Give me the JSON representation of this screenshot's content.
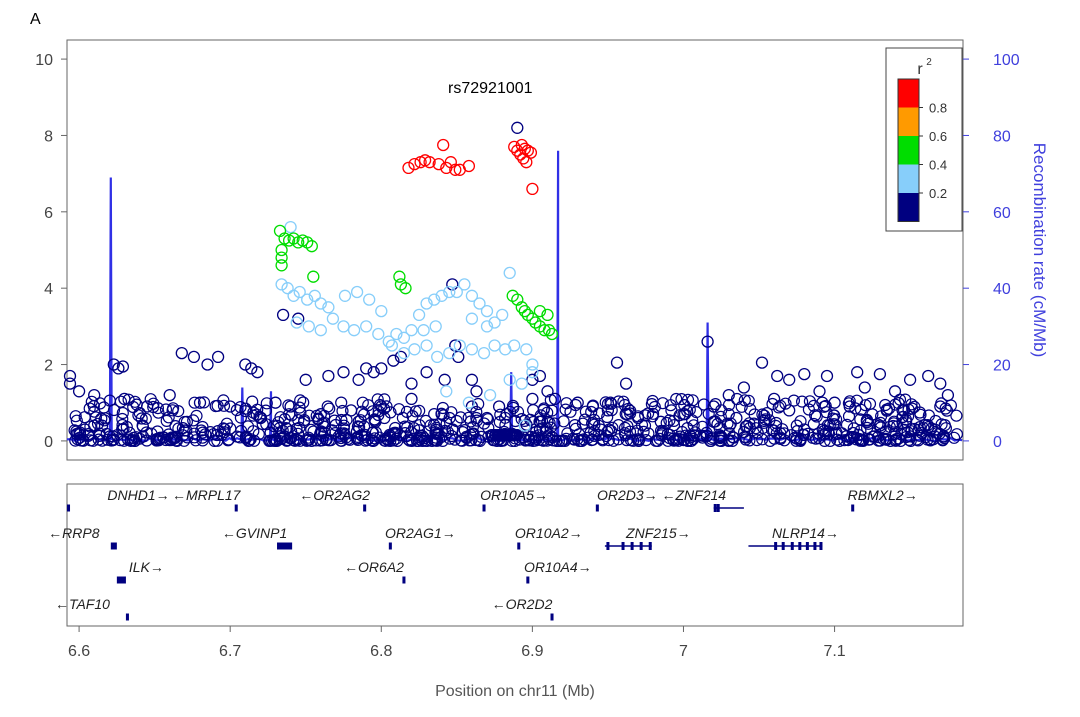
{
  "panel_label": "A",
  "chart_data": {
    "type": "scatter",
    "annotation": "rs72921001",
    "lead_snp": {
      "x": 6.892,
      "y": 8.2
    },
    "xlabel": "Position on chr11 (Mb)",
    "ylabel": "",
    "y2label": "Recombination rate (cM/Mb)",
    "xlim": [
      6.592,
      7.185
    ],
    "ylim": [
      -0.5,
      10.5
    ],
    "y2lim": [
      -5,
      105
    ],
    "xticks": [
      "6.6",
      "6.7",
      "6.8",
      "6.9",
      "7",
      "7.1"
    ],
    "yticks": [
      "0",
      "2",
      "4",
      "6",
      "8",
      "10"
    ],
    "y2ticks": [
      "0",
      "20",
      "40",
      "60",
      "80",
      "100"
    ],
    "legend": {
      "title": "r",
      "title_sup": "2",
      "position": "top-right",
      "labels": [
        "0.8",
        "0.6",
        "0.4",
        "0.2"
      ],
      "bins": [
        {
          "color": "#ff0000"
        },
        {
          "color": "#ff9a00"
        },
        {
          "color": "#00dd00"
        },
        {
          "color": "#87cefa"
        },
        {
          "color": "#000080"
        }
      ]
    },
    "series": [
      {
        "color": "#ff0000",
        "points": [
          [
            6.818,
            7.15
          ],
          [
            6.822,
            7.25
          ],
          [
            6.826,
            7.3
          ],
          [
            6.829,
            7.35
          ],
          [
            6.832,
            7.3
          ],
          [
            6.838,
            7.25
          ],
          [
            6.841,
            7.75
          ],
          [
            6.843,
            7.15
          ],
          [
            6.846,
            7.3
          ],
          [
            6.849,
            7.1
          ],
          [
            6.852,
            7.1
          ],
          [
            6.858,
            7.2
          ],
          [
            6.888,
            7.7
          ],
          [
            6.89,
            7.6
          ],
          [
            6.892,
            7.5
          ],
          [
            6.894,
            7.4
          ],
          [
            6.896,
            7.3
          ],
          [
            6.897,
            7.6
          ],
          [
            6.899,
            7.55
          ],
          [
            6.9,
            6.6
          ],
          [
            6.893,
            7.75
          ],
          [
            6.895,
            7.65
          ]
        ]
      },
      {
        "color": "#00dd00",
        "points": [
          [
            6.733,
            5.5
          ],
          [
            6.736,
            5.3
          ],
          [
            6.739,
            5.25
          ],
          [
            6.742,
            5.3
          ],
          [
            6.745,
            5.2
          ],
          [
            6.748,
            5.25
          ],
          [
            6.751,
            5.2
          ],
          [
            6.754,
            5.1
          ],
          [
            6.734,
            5.0
          ],
          [
            6.734,
            4.8
          ],
          [
            6.734,
            4.6
          ],
          [
            6.755,
            4.3
          ],
          [
            6.812,
            4.3
          ],
          [
            6.813,
            4.1
          ],
          [
            6.816,
            4.0
          ],
          [
            6.887,
            3.8
          ],
          [
            6.89,
            3.7
          ],
          [
            6.893,
            3.5
          ],
          [
            6.895,
            3.4
          ],
          [
            6.897,
            3.3
          ],
          [
            6.9,
            3.2
          ],
          [
            6.902,
            3.1
          ],
          [
            6.905,
            3.0
          ],
          [
            6.908,
            2.9
          ],
          [
            6.911,
            2.9
          ],
          [
            6.913,
            2.8
          ],
          [
            6.905,
            3.4
          ],
          [
            6.91,
            3.3
          ]
        ]
      },
      {
        "color": "#87cefa",
        "points": [
          [
            6.74,
            5.6
          ],
          [
            6.734,
            4.1
          ],
          [
            6.738,
            4.0
          ],
          [
            6.742,
            3.8
          ],
          [
            6.746,
            3.9
          ],
          [
            6.751,
            3.7
          ],
          [
            6.756,
            3.8
          ],
          [
            6.76,
            3.6
          ],
          [
            6.765,
            3.5
          ],
          [
            6.744,
            3.1
          ],
          [
            6.752,
            3.0
          ],
          [
            6.76,
            2.9
          ],
          [
            6.768,
            3.2
          ],
          [
            6.775,
            3.0
          ],
          [
            6.782,
            2.9
          ],
          [
            6.79,
            3.0
          ],
          [
            6.798,
            2.8
          ],
          [
            6.805,
            2.6
          ],
          [
            6.81,
            2.8
          ],
          [
            6.815,
            2.7
          ],
          [
            6.82,
            2.9
          ],
          [
            6.825,
            3.3
          ],
          [
            6.83,
            3.6
          ],
          [
            6.835,
            3.7
          ],
          [
            6.84,
            3.8
          ],
          [
            6.845,
            3.9
          ],
          [
            6.85,
            3.9
          ],
          [
            6.855,
            4.1
          ],
          [
            6.86,
            3.8
          ],
          [
            6.865,
            3.6
          ],
          [
            6.87,
            3.4
          ],
          [
            6.875,
            3.1
          ],
          [
            6.88,
            3.3
          ],
          [
            6.885,
            4.4
          ],
          [
            6.776,
            3.8
          ],
          [
            6.784,
            3.9
          ],
          [
            6.792,
            3.7
          ],
          [
            6.8,
            3.4
          ],
          [
            6.807,
            2.5
          ],
          [
            6.815,
            2.3
          ],
          [
            6.822,
            2.4
          ],
          [
            6.83,
            2.5
          ],
          [
            6.837,
            2.2
          ],
          [
            6.845,
            2.3
          ],
          [
            6.852,
            2.5
          ],
          [
            6.86,
            2.4
          ],
          [
            6.868,
            2.3
          ],
          [
            6.875,
            2.5
          ],
          [
            6.882,
            2.4
          ],
          [
            6.888,
            2.5
          ],
          [
            6.896,
            2.4
          ],
          [
            6.9,
            2.0
          ],
          [
            6.885,
            1.6
          ],
          [
            6.893,
            1.5
          ],
          [
            6.9,
            1.8
          ],
          [
            6.872,
            1.2
          ],
          [
            6.858,
            1.0
          ],
          [
            6.843,
            1.3
          ],
          [
            6.895,
            0.4
          ],
          [
            6.828,
            2.9
          ],
          [
            6.836,
            3.0
          ],
          [
            6.86,
            3.2
          ],
          [
            6.87,
            3.0
          ]
        ]
      },
      {
        "color": "#000080",
        "points": [
          [
            6.594,
            1.7
          ],
          [
            6.594,
            1.5
          ],
          [
            6.623,
            2.0
          ],
          [
            6.626,
            1.9
          ],
          [
            6.629,
            1.95
          ],
          [
            6.668,
            2.3
          ],
          [
            6.676,
            2.2
          ],
          [
            6.685,
            2.0
          ],
          [
            6.692,
            2.2
          ],
          [
            6.71,
            2.0
          ],
          [
            6.714,
            1.9
          ],
          [
            6.718,
            1.8
          ],
          [
            6.735,
            3.3
          ],
          [
            6.745,
            3.2
          ],
          [
            6.79,
            1.9
          ],
          [
            6.8,
            1.9
          ],
          [
            6.808,
            2.1
          ],
          [
            6.813,
            2.2
          ],
          [
            6.847,
            4.1
          ],
          [
            6.849,
            2.5
          ],
          [
            6.851,
            2.2
          ],
          [
            6.86,
            1.6
          ],
          [
            6.863,
            1.3
          ],
          [
            6.89,
            8.2
          ],
          [
            6.956,
            2.05
          ],
          [
            6.962,
            1.5
          ],
          [
            7.016,
            2.6
          ],
          [
            7.052,
            2.05
          ],
          [
            7.062,
            1.7
          ],
          [
            7.07,
            1.6
          ],
          [
            7.08,
            1.75
          ],
          [
            7.095,
            1.7
          ],
          [
            7.1,
            1.0
          ],
          [
            7.115,
            1.8
          ],
          [
            7.13,
            1.75
          ],
          [
            7.15,
            1.6
          ],
          [
            7.162,
            1.7
          ],
          [
            7.175,
            1.2
          ],
          [
            6.9,
            1.6
          ],
          [
            6.905,
            1.7
          ],
          [
            6.91,
            1.3
          ],
          [
            6.915,
            1.1
          ],
          [
            6.93,
            1.0
          ],
          [
            6.94,
            0.9
          ],
          [
            6.95,
            0.8
          ],
          [
            6.97,
            0.6
          ],
          [
            6.985,
            0.5
          ],
          [
            7.0,
            0.7
          ],
          [
            7.02,
            0.9
          ],
          [
            7.03,
            1.2
          ],
          [
            7.04,
            1.4
          ],
          [
            7.06,
            1.1
          ],
          [
            7.09,
            1.3
          ],
          [
            7.12,
            1.4
          ],
          [
            7.14,
            1.3
          ],
          [
            7.17,
            1.5
          ],
          [
            6.6,
            1.3
          ],
          [
            6.61,
            1.2
          ],
          [
            6.63,
            1.1
          ],
          [
            6.645,
            0.9
          ],
          [
            6.66,
            1.2
          ],
          [
            6.68,
            1.0
          ],
          [
            6.7,
            0.9
          ],
          [
            6.72,
            0.6
          ],
          [
            6.74,
            0.9
          ],
          [
            6.76,
            0.7
          ],
          [
            6.78,
            0.8
          ],
          [
            6.8,
            0.9
          ],
          [
            6.82,
            1.1
          ],
          [
            6.84,
            0.7
          ],
          [
            6.86,
            0.9
          ],
          [
            6.87,
            0.6
          ],
          [
            6.73,
            1.0
          ],
          [
            6.75,
            1.6
          ],
          [
            6.765,
            1.7
          ],
          [
            6.775,
            1.8
          ],
          [
            6.785,
            1.6
          ],
          [
            6.795,
            1.8
          ],
          [
            6.82,
            1.5
          ],
          [
            6.83,
            1.8
          ],
          [
            6.842,
            1.6
          ],
          [
            6.878,
            0.9
          ],
          [
            6.883,
            0.7
          ],
          [
            6.61,
            0.4
          ],
          [
            6.9,
            1.1
          ],
          [
            6.905,
            0.3
          ],
          [
            6.91,
            0.5
          ],
          [
            7.02,
            0.5
          ],
          [
            7.035,
            0.6
          ],
          [
            7.07,
            0.8
          ],
          [
            7.11,
            0.9
          ],
          [
            7.145,
            0.8
          ],
          [
            7.17,
            0.9
          ],
          [
            7.13,
            0.4
          ],
          [
            7.08,
            0.3
          ]
        ]
      }
    ],
    "recomb_peaks": [
      {
        "x": 6.621,
        "rate": 69
      },
      {
        "x": 6.708,
        "rate": 14
      },
      {
        "x": 6.727,
        "rate": 13
      },
      {
        "x": 6.886,
        "rate": 18
      },
      {
        "x": 6.917,
        "rate": 76
      },
      {
        "x": 7.016,
        "rate": 31
      }
    ],
    "genes": [
      {
        "name": "DNHD1",
        "dir": "right",
        "start": 6.592,
        "end": 6.594,
        "row": 0,
        "exons": []
      },
      {
        "name": "MRPL17",
        "dir": "left",
        "start": 6.703,
        "end": 6.705,
        "row": 0,
        "exons": []
      },
      {
        "name": "OR2AG2",
        "dir": "left",
        "start": 6.788,
        "end": 6.79,
        "row": 0,
        "exons": []
      },
      {
        "name": "OR10A5",
        "dir": "right",
        "start": 6.867,
        "end": 6.869,
        "row": 0,
        "exons": []
      },
      {
        "name": "OR2D3",
        "dir": "right",
        "start": 6.942,
        "end": 6.944,
        "row": 0,
        "exons": []
      },
      {
        "name": "ZNF214",
        "dir": "left",
        "start": 7.02,
        "end": 7.04,
        "row": 0,
        "exons": [
          7.021,
          7.023
        ]
      },
      {
        "name": "RBMXL2",
        "dir": "right",
        "start": 7.111,
        "end": 7.113,
        "row": 0,
        "exons": []
      },
      {
        "name": "RRP8",
        "dir": "left",
        "start": 6.621,
        "end": 6.625,
        "row": 1,
        "exons": []
      },
      {
        "name": "GVINP1",
        "dir": "left",
        "start": 6.731,
        "end": 6.741,
        "row": 1,
        "exons": []
      },
      {
        "name": "OR2AG1",
        "dir": "right",
        "start": 6.805,
        "end": 6.807,
        "row": 1,
        "exons": []
      },
      {
        "name": "OR10A2",
        "dir": "right",
        "start": 6.89,
        "end": 6.892,
        "row": 1,
        "exons": []
      },
      {
        "name": "ZNF215",
        "dir": "right",
        "start": 6.948,
        "end": 6.979,
        "row": 1,
        "exons": [
          6.95,
          6.96,
          6.966,
          6.972,
          6.978
        ]
      },
      {
        "name": "NLRP14",
        "dir": "right",
        "start": 7.043,
        "end": 7.092,
        "row": 1,
        "exons": [
          7.061,
          7.066,
          7.072,
          7.077,
          7.082,
          7.087,
          7.091
        ]
      },
      {
        "name": "ILK",
        "dir": "right",
        "start": 6.625,
        "end": 6.631,
        "row": 2,
        "exons": []
      },
      {
        "name": "OR6A2",
        "dir": "left",
        "start": 6.814,
        "end": 6.816,
        "row": 2,
        "exons": []
      },
      {
        "name": "OR10A4",
        "dir": "right",
        "start": 6.896,
        "end": 6.898,
        "row": 2,
        "exons": []
      },
      {
        "name": "TAF10",
        "dir": "left",
        "start": 6.631,
        "end": 6.633,
        "row": 3,
        "exons": []
      },
      {
        "name": "OR2D2",
        "dir": "left",
        "start": 6.912,
        "end": 6.914,
        "row": 3,
        "exons": []
      }
    ]
  }
}
